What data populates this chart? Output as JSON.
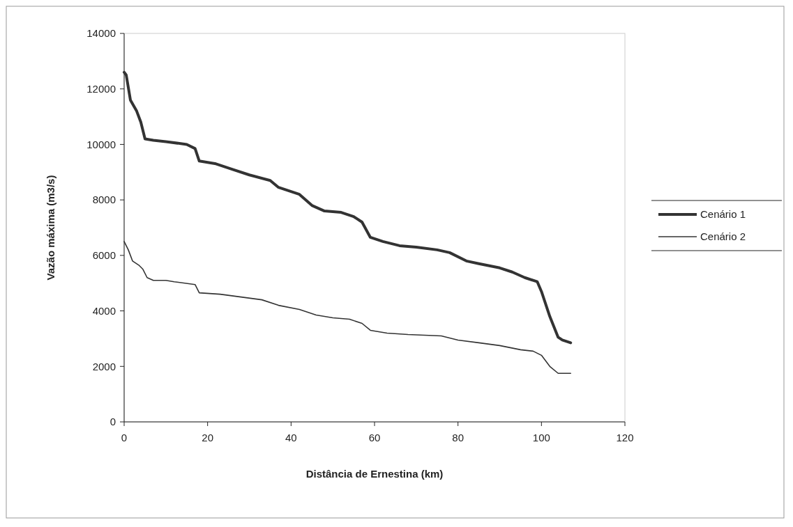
{
  "chart_data": {
    "type": "line",
    "xlabel": "Distância de Ernestina (km)",
    "ylabel": "Vazão máxima (m3/s)",
    "xlim": [
      0,
      120
    ],
    "xticks": [
      0,
      20,
      40,
      60,
      80,
      100,
      120
    ],
    "ylim": [
      0,
      14000
    ],
    "yticks": [
      0,
      2000,
      4000,
      6000,
      8000,
      10000,
      12000,
      14000
    ],
    "grid": false,
    "legend": "right",
    "marker": "none",
    "line_style": "solid",
    "series": [
      {
        "name": "Cenário 1",
        "color": "#333333",
        "x": [
          0,
          0.5,
          1.5,
          3,
          4,
          5,
          7,
          10,
          15,
          17,
          18,
          22,
          26,
          30,
          35,
          37,
          40,
          42,
          45,
          48,
          52,
          55,
          57,
          59,
          62,
          66,
          70,
          75,
          78,
          82,
          85,
          90,
          93,
          96,
          99,
          100,
          102,
          104,
          105,
          107
        ],
        "values": [
          12600,
          12500,
          11600,
          11200,
          10800,
          10200,
          10150,
          10100,
          10000,
          9850,
          9400,
          9300,
          9100,
          8900,
          8700,
          8450,
          8300,
          8200,
          7800,
          7600,
          7550,
          7400,
          7200,
          6650,
          6500,
          6350,
          6300,
          6200,
          6100,
          5800,
          5700,
          5550,
          5400,
          5200,
          5050,
          4700,
          3800,
          3050,
          2950,
          2850
        ]
      },
      {
        "name": "Cenário 2",
        "color": "#333333",
        "x": [
          0,
          1,
          2,
          3.5,
          4.5,
          5.5,
          7,
          10,
          12,
          17,
          18,
          23,
          28,
          33,
          37,
          42,
          46,
          50,
          54,
          57,
          59,
          63,
          68,
          76,
          80,
          85,
          90,
          95,
          98,
          100,
          102,
          104,
          107
        ],
        "values": [
          6500,
          6200,
          5800,
          5650,
          5500,
          5200,
          5100,
          5100,
          5050,
          4950,
          4650,
          4600,
          4500,
          4400,
          4200,
          4050,
          3850,
          3750,
          3700,
          3550,
          3300,
          3200,
          3150,
          3100,
          2950,
          2850,
          2750,
          2600,
          2550,
          2400,
          2000,
          1750,
          1750
        ]
      }
    ]
  }
}
